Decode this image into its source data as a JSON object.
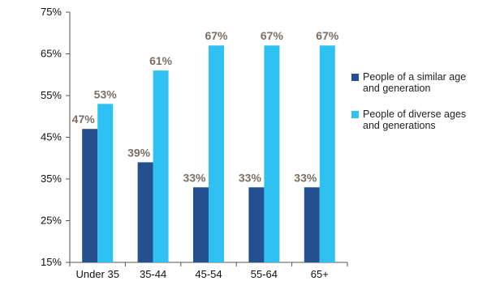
{
  "chart_data": {
    "type": "bar",
    "categories": [
      "Under 35",
      "35-44",
      "45-54",
      "55-64",
      "65+"
    ],
    "series": [
      {
        "name": "People of a similar age and generation",
        "color": "#24508f",
        "values": [
          47,
          39,
          33,
          33,
          33
        ],
        "labels": [
          "47%",
          "39%",
          "33%",
          "33%",
          "33%"
        ]
      },
      {
        "name": "People of diverse ages and generations",
        "color": "#2ec1f1",
        "values": [
          53,
          61,
          67,
          67,
          67
        ],
        "labels": [
          "53%",
          "61%",
          "67%",
          "67%",
          "67%"
        ]
      }
    ],
    "yticks": [
      15,
      25,
      35,
      45,
      55,
      65,
      75
    ],
    "ytick_labels": [
      "15%",
      "25%",
      "35%",
      "45%",
      "55%",
      "65%",
      "75%"
    ],
    "ylim": [
      15,
      75
    ],
    "grid": false,
    "legend_position": "right"
  }
}
